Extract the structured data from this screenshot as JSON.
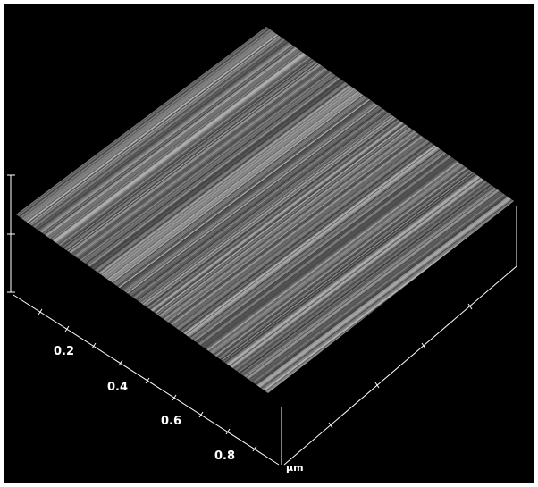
{
  "axis": {
    "ticks": [
      "0.2",
      "0.4",
      "0.6",
      "0.8"
    ],
    "unit": "μm"
  }
}
